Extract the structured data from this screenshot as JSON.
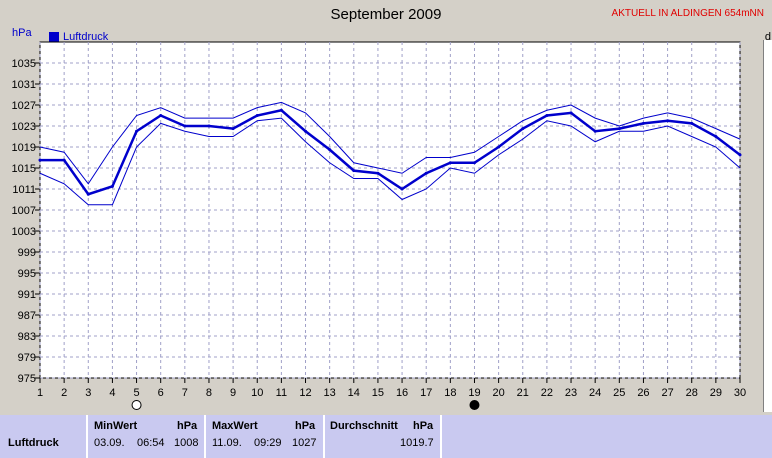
{
  "header": {
    "title": "September 2009",
    "live_label": "AKTUELL IN ALDINGEN 654mNN",
    "unit": "hPa",
    "legend": "Luftdruck",
    "right_char": "d"
  },
  "chart_data": {
    "type": "line",
    "title": "September 2009",
    "ylabel": "hPa",
    "x": [
      1,
      2,
      3,
      4,
      5,
      6,
      7,
      8,
      9,
      10,
      11,
      12,
      13,
      14,
      15,
      16,
      17,
      18,
      19,
      20,
      21,
      22,
      23,
      24,
      25,
      26,
      27,
      28,
      29,
      30
    ],
    "ylim": [
      975,
      1039
    ],
    "yticks": [
      975,
      979,
      983,
      987,
      991,
      995,
      999,
      1003,
      1007,
      1011,
      1015,
      1019,
      1023,
      1027,
      1031,
      1035
    ],
    "grid": true,
    "legend_position": "top-left",
    "series": [
      {
        "name": "Luftdruck",
        "role": "mean",
        "values": [
          1016.5,
          1016.5,
          1010,
          1011.5,
          1022,
          1025,
          1023,
          1023,
          1022.5,
          1025,
          1026,
          1022,
          1018.5,
          1014.5,
          1014,
          1011,
          1014,
          1016,
          1016,
          1019,
          1022.5,
          1025,
          1025.5,
          1022,
          1022.5,
          1023.5,
          1024,
          1023.5,
          1021,
          1017.5
        ]
      },
      {
        "role": "max",
        "values": [
          1019,
          1018,
          1012,
          1019,
          1025,
          1026.5,
          1024.5,
          1024.5,
          1024.5,
          1026.5,
          1027.5,
          1025.5,
          1021,
          1016,
          1015,
          1014,
          1017,
          1017,
          1018,
          1021,
          1024,
          1026,
          1027,
          1024.5,
          1023,
          1024.5,
          1025.5,
          1024.5,
          1022.5,
          1020.5
        ]
      },
      {
        "role": "min",
        "values": [
          1014,
          1012,
          1008,
          1008,
          1019,
          1023.5,
          1022,
          1021,
          1021,
          1024,
          1024.5,
          1020,
          1016,
          1013,
          1013,
          1009,
          1011,
          1015,
          1014,
          1017.5,
          1020.5,
          1024,
          1023,
          1020,
          1022,
          1022,
          1023,
          1021,
          1019,
          1015
        ]
      }
    ],
    "moon_markers": [
      {
        "day": 5,
        "phase": "full"
      },
      {
        "day": 19,
        "phase": "new"
      }
    ],
    "colors": {
      "line": "#0000cc",
      "plot_bg": "#ffffff",
      "grid": "#a0a0c8"
    }
  },
  "table": {
    "row_label": "Luftdruck",
    "min": {
      "header": "MinWert",
      "unit": "hPa",
      "date": "03.09.",
      "time": "06:54",
      "value": "1008"
    },
    "max": {
      "header": "MaxWert",
      "unit": "hPa",
      "date": "11.09.",
      "time": "09:29",
      "value": "1027"
    },
    "avg": {
      "header": "Durchschnitt",
      "unit": "hPa",
      "value": "1019.7"
    }
  }
}
